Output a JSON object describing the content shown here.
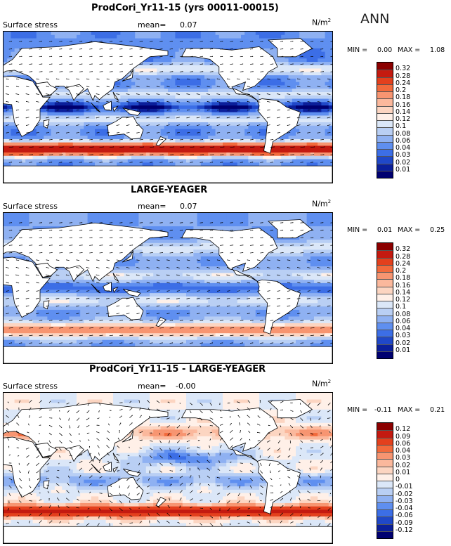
{
  "season": "ANN",
  "panels": [
    {
      "title": "ProdCori_Yr11-15 (yrs 00011-00015)",
      "variable": "Surface stress",
      "mean_label": "mean=",
      "mean_value": "0.07",
      "units": "N/m",
      "units_sup": "2",
      "min_label": "MIN =",
      "min_value": "0.00",
      "max_label": "MAX =",
      "max_value": "1.08",
      "colorbar": {
        "labels": [
          "0.32",
          "0.28",
          "0.24",
          "0.2",
          "0.18",
          "0.16",
          "0.14",
          "0.12",
          "0.1",
          "0.08",
          "0.06",
          "0.04",
          "0.03",
          "0.02",
          "0.01"
        ],
        "colors": [
          "#8b0000",
          "#c41a10",
          "#e3401d",
          "#f26a3c",
          "#f79571",
          "#fbb89c",
          "#fcd5c1",
          "#fff0e8",
          "#dbe7f8",
          "#b9cff4",
          "#8fb1f2",
          "#5f8ff0",
          "#3c6ee6",
          "#2048c8",
          "#0b1f9a",
          "#000070"
        ]
      },
      "field": "control"
    },
    {
      "title": "LARGE-YEAGER",
      "variable": "Surface stress",
      "mean_label": "mean=",
      "mean_value": "0.07",
      "units": "N/m",
      "units_sup": "2",
      "min_label": "MIN =",
      "min_value": "0.01",
      "max_label": "MAX =",
      "max_value": "0.25",
      "colorbar": {
        "labels": [
          "0.32",
          "0.28",
          "0.24",
          "0.2",
          "0.18",
          "0.16",
          "0.14",
          "0.12",
          "0.1",
          "0.08",
          "0.06",
          "0.04",
          "0.03",
          "0.02",
          "0.01"
        ],
        "colors": [
          "#8b0000",
          "#c41a10",
          "#e3401d",
          "#f26a3c",
          "#f79571",
          "#fbb89c",
          "#fcd5c1",
          "#fff0e8",
          "#dbe7f8",
          "#b9cff4",
          "#8fb1f2",
          "#5f8ff0",
          "#3c6ee6",
          "#2048c8",
          "#0b1f9a",
          "#000070"
        ]
      },
      "field": "obs"
    },
    {
      "title": "ProdCori_Yr11-15 - LARGE-YEAGER",
      "variable": "Surface stress",
      "mean_label": "mean=",
      "mean_value": "-0.00",
      "units": "N/m",
      "units_sup": "2",
      "min_label": "MIN =",
      "min_value": "-0.11",
      "max_label": "MAX =",
      "max_value": "0.21",
      "colorbar": {
        "labels": [
          "0.12",
          "0.09",
          "0.06",
          "0.04",
          "0.03",
          "0.02",
          "0.01",
          "0",
          "-0.01",
          "-0.02",
          "-0.03",
          "-0.04",
          "-0.06",
          "-0.09",
          "-0.12"
        ],
        "colors": [
          "#8b0000",
          "#c41a10",
          "#e3401d",
          "#f26a3c",
          "#f79571",
          "#fbb89c",
          "#fcd5c1",
          "#fff0e8",
          "#dbe7f8",
          "#b9cff4",
          "#8fb1f2",
          "#5f8ff0",
          "#3c6ee6",
          "#2048c8",
          "#0b1f9a",
          "#000070"
        ]
      },
      "field": "diff"
    }
  ]
}
